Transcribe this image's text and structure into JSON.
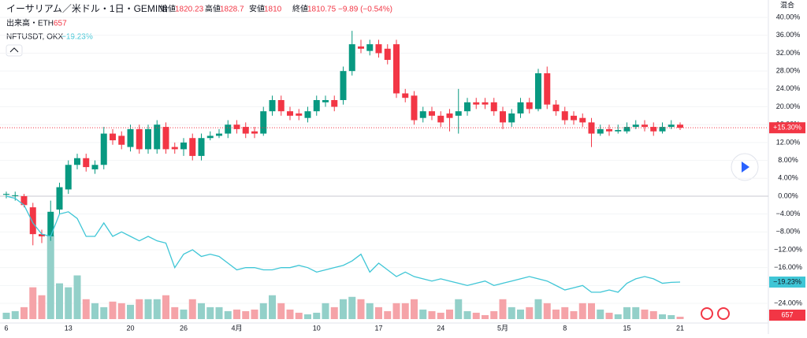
{
  "header": {
    "symbol": "イーサリアム／米ドル・1日・GEMINI",
    "open_label": "始値",
    "open": 1820.23,
    "high_label": "高値",
    "high": 1828.7,
    "low_label": "安値",
    "low": 1810.0,
    "close_label": "終値",
    "close": 1810.75,
    "change": "−9.89 (−0.54%)",
    "volume_title": "出来高・ETH",
    "scale_mode": "混合"
  },
  "chart_data": {
    "type": "candlestick",
    "categories": [
      "6",
      null,
      null,
      null,
      null,
      null,
      null,
      "13",
      null,
      null,
      null,
      null,
      null,
      null,
      "20",
      null,
      null,
      null,
      null,
      null,
      "26",
      null,
      null,
      null,
      null,
      null,
      "4月",
      null,
      null,
      null,
      null,
      null,
      null,
      null,
      null,
      "10",
      null,
      null,
      null,
      null,
      null,
      null,
      "17",
      null,
      null,
      null,
      null,
      null,
      null,
      "24",
      null,
      null,
      null,
      null,
      null,
      null,
      "5月",
      null,
      null,
      null,
      null,
      null,
      null,
      "8",
      null,
      null,
      null,
      null,
      null,
      null,
      "15",
      null,
      null,
      null,
      null,
      null,
      "21"
    ],
    "open": [
      0.3,
      0,
      0,
      -2.5,
      -8.5,
      -9,
      -3,
      1.5,
      7,
      8.5,
      6,
      7,
      14,
      13.5,
      11,
      15,
      10.5,
      10.5,
      15.5,
      11,
      10.5,
      13,
      9,
      13,
      13.5,
      14,
      16,
      15.5,
      14.5,
      14,
      19,
      21.5,
      19,
      18.5,
      17.5,
      19,
      21,
      21.5,
      21.5,
      28,
      33.5,
      32.5,
      34,
      33,
      34,
      23,
      22.5,
      17.5,
      19,
      18,
      18.5,
      18,
      19,
      21,
      21,
      21,
      19,
      16.5,
      18.5,
      21,
      19.5,
      27.5,
      20.5,
      19,
      18,
      17.5,
      16.5,
      14,
      15,
      14.5,
      14.5,
      15.5,
      16,
      15.5,
      14.5,
      15.5,
      16
    ],
    "high": [
      1,
      1,
      0.5,
      -1.5,
      -7.5,
      -1,
      3,
      8,
      9.5,
      9.5,
      8,
      15.5,
      15,
      14.5,
      16,
      16,
      16,
      17,
      16.5,
      12,
      13,
      14,
      14,
      14.5,
      15,
      17,
      17,
      16.5,
      15.5,
      20,
      22.5,
      22.5,
      20,
      19.5,
      20,
      22.5,
      22.5,
      22.5,
      29,
      37,
      35,
      35,
      35,
      34,
      35,
      24,
      23.5,
      20,
      20,
      19,
      19.5,
      24,
      22,
      22,
      22,
      22,
      20,
      19.5,
      22,
      22,
      28.5,
      29,
      21.5,
      20,
      19,
      18.5,
      17.5,
      16,
      16,
      16,
      16.5,
      17,
      17,
      16.5,
      16.5,
      17,
      16.5
    ],
    "low": [
      -0.5,
      -1,
      -2.5,
      -11,
      -10.5,
      -10,
      -4,
      0.5,
      6,
      5.5,
      5,
      6,
      11.5,
      10.5,
      10,
      9.5,
      9.5,
      9.5,
      9.5,
      9.5,
      9,
      8,
      8,
      12.5,
      13,
      13,
      14,
      13,
      13,
      13.5,
      18,
      18,
      17,
      17,
      16.5,
      18,
      20,
      19,
      20.5,
      27,
      32,
      31.5,
      31,
      29.5,
      22,
      21,
      16,
      16.5,
      17,
      15.5,
      14.5,
      14,
      18,
      19.5,
      19.5,
      18,
      15,
      15.5,
      17.5,
      18.5,
      19,
      19.5,
      18,
      16,
      16,
      15.5,
      11,
      13.5,
      13.5,
      14,
      14,
      15,
      14.5,
      13.5,
      14,
      15,
      14.8
    ],
    "close": [
      0.5,
      0.2,
      -2,
      -8.5,
      -9,
      -3.5,
      2,
      7,
      8.5,
      6.5,
      7,
      14,
      12.5,
      11.5,
      15,
      10.5,
      15,
      16,
      10.5,
      10.5,
      12,
      9,
      13,
      13.5,
      14,
      16,
      15,
      14,
      14,
      19,
      21.5,
      19,
      18,
      18,
      19,
      21.5,
      21.5,
      20,
      28,
      34,
      33,
      34,
      32,
      30.5,
      23,
      22,
      17,
      19,
      18,
      16.5,
      17.5,
      19,
      21,
      20.5,
      20.5,
      19,
      16.5,
      18.5,
      21,
      19.5,
      27.5,
      20.5,
      19,
      17,
      17,
      16.5,
      14,
      15,
      14.5,
      14.8,
      15.5,
      16,
      15.5,
      14.5,
      15.5,
      16,
      15.3
    ],
    "last_label": "+15.30%",
    "volume": [
      1760,
      2200,
      3300,
      8800,
      6600,
      23100,
      9900,
      8800,
      12100,
      5500,
      4400,
      3300,
      4840,
      4400,
      3960,
      5500,
      5500,
      5500,
      6600,
      3300,
      2640,
      5500,
      4400,
      3300,
      3300,
      2200,
      2640,
      2200,
      2640,
      4400,
      6600,
      4400,
      2640,
      1760,
      1320,
      1760,
      4400,
      3300,
      5500,
      6160,
      5500,
      4400,
      3300,
      2200,
      4400,
      4400,
      5500,
      2640,
      2200,
      1760,
      2640,
      5500,
      2200,
      1760,
      1100,
      2200,
      5500,
      3300,
      2640,
      3300,
      5500,
      4400,
      2640,
      3300,
      2200,
      4400,
      4400,
      2640,
      1760,
      1320,
      3300,
      3300,
      2640,
      2200,
      1320,
      1100,
      657
    ],
    "vlim": [
      0,
      24000
    ],
    "up_color": "#089981",
    "down_color": "#f23645",
    "up_volume_color": "#93d0c9",
    "down_volume_color": "#f5a3a8",
    "compare": {
      "name": "NFTUSDT, OKX",
      "color": "#3fc6d6",
      "last_label": "−19.23%",
      "values": [
        0,
        -0.5,
        -2,
        -6,
        -8.5,
        -9,
        -4,
        -3.5,
        -5,
        -9,
        -9,
        -6,
        -9,
        -8,
        -9,
        -10,
        -9,
        -10,
        -10.5,
        -16,
        -13,
        -12,
        -13.5,
        -13,
        -13.5,
        -15,
        -16.5,
        -16,
        -16,
        -16.5,
        -16.5,
        -16,
        -16,
        -15.5,
        -16,
        -17,
        -16.5,
        -16,
        -15.5,
        -14.5,
        -13,
        -17,
        -15,
        -16.5,
        -18,
        -17,
        -18,
        -18.5,
        -19,
        -18.5,
        -19,
        -19.5,
        -20,
        -19.5,
        -19,
        -20,
        -19.5,
        -19,
        -18.5,
        -18,
        -18.5,
        -19,
        -20,
        -21,
        -20.5,
        -20,
        -21.5,
        -21.5,
        -21,
        -21.5,
        -19.5,
        -18.5,
        -18,
        -18.5,
        -19.5,
        -19.3,
        -19.23
      ]
    },
    "ylim": [
      -28.4,
      43.9
    ],
    "yticks": [
      {
        "value": 40,
        "label": "40.00%"
      },
      {
        "value": 36,
        "label": "36.00%"
      },
      {
        "value": 32,
        "label": "32.00%"
      },
      {
        "value": 28,
        "label": "28.00%"
      },
      {
        "value": 24,
        "label": "24.00%"
      },
      {
        "value": 20,
        "label": "20.00%"
      },
      {
        "value": 16,
        "label": "16.00%"
      },
      {
        "value": 12,
        "label": "12.00%"
      },
      {
        "value": 8,
        "label": "8.00%"
      },
      {
        "value": 4,
        "label": "4.00%"
      },
      {
        "value": 0,
        "label": "0.00%"
      },
      {
        "value": -4,
        "label": "−4.00%"
      },
      {
        "value": -8,
        "label": "−8.00%"
      },
      {
        "value": -12,
        "label": "−12.00%"
      },
      {
        "value": -16,
        "label": "−16.00%"
      },
      {
        "value": -20,
        "label": "−20.00%"
      },
      {
        "value": -24,
        "label": "−24.00%"
      }
    ]
  }
}
